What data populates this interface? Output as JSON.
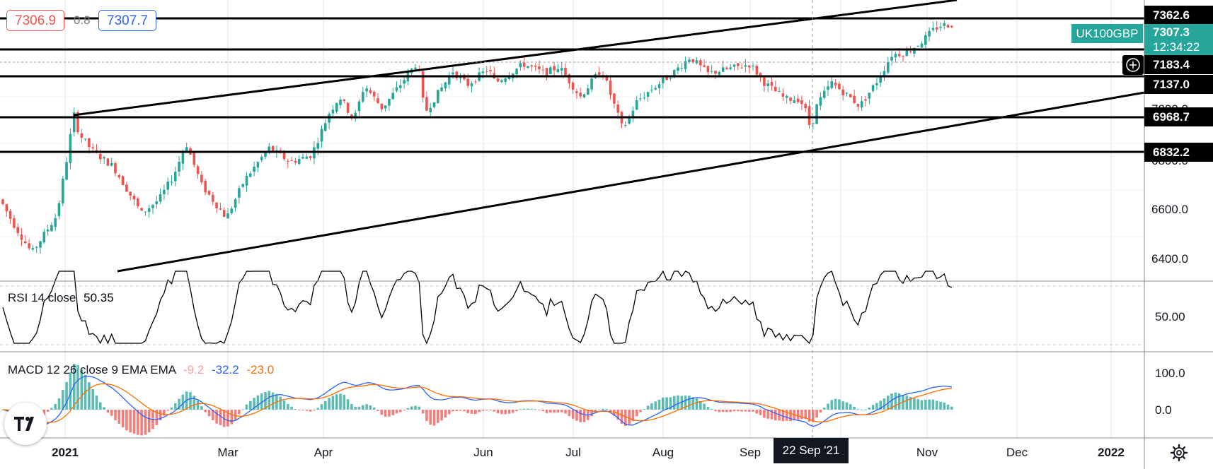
{
  "header": {
    "bid_price": "7306.9",
    "spread": "0.8",
    "ask_price": "7307.7"
  },
  "symbol": {
    "name": "UK100GBP",
    "last_price": "7307.3",
    "countdown": "12:34:22"
  },
  "price_axis": {
    "ticks": [
      "7000.0",
      "6800.0",
      "6600.0",
      "6400.0"
    ],
    "levels": [
      "7362.6",
      "7183.4",
      "7137.0",
      "6968.7",
      "6832.2"
    ]
  },
  "rsi": {
    "legend": "RSI 14 close",
    "value": "50.35",
    "axis_tick": "50.00"
  },
  "macd": {
    "legend": "MACD 12 26 close 9 EMA EMA",
    "histogram": "-9.2",
    "macd": "-32.2",
    "signal": "-23.0",
    "axis_ticks": [
      "100.0",
      "0.0"
    ]
  },
  "time_axis": {
    "labels": [
      "2021",
      "Mar",
      "Apr",
      "Jun",
      "Jul",
      "Aug",
      "Sep",
      "Nov",
      "Dec",
      "2022"
    ],
    "crosshair_label": "22 Sep '21"
  },
  "colors": {
    "up": "#26a69a",
    "down": "#ef5350",
    "macd_line": "#2962ff",
    "signal_line": "#ff6d00",
    "hist_up": "#26a69a",
    "hist_down": "#ef5350"
  },
  "icons": [
    "crosshair-plus-icon",
    "tradingview-logo-icon",
    "settings-gear-icon"
  ]
}
